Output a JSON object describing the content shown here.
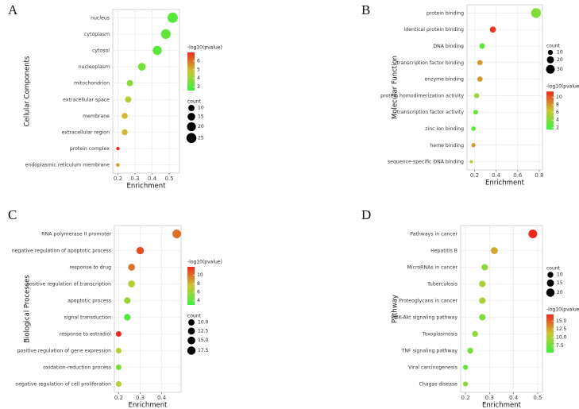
{
  "chart_data": [
    {
      "panel_label": "A",
      "type": "bubble",
      "xlabel": "Enrichment",
      "ylabel": "Cellular Components",
      "categories": [
        "nucleus",
        "cytoplasm",
        "cytosol",
        "nucleoplasm",
        "mitochondrion",
        "extracellular space",
        "membrane",
        "extracellular region",
        "protein complex",
        "endoplasmic reticulum membrane"
      ],
      "values": [
        0.52,
        0.48,
        0.43,
        0.34,
        0.27,
        0.26,
        0.24,
        0.24,
        0.2,
        0.2
      ],
      "count": [
        27,
        24,
        21,
        15,
        10,
        10,
        9,
        9,
        3,
        3
      ],
      "neglog10p": [
        3,
        3.2,
        3,
        3.5,
        3.8,
        4.5,
        5,
        5,
        7,
        5.5
      ],
      "xlim": [
        0.17,
        0.56
      ],
      "xticks": [
        0.2,
        0.3,
        0.4,
        0.5
      ],
      "grid": true,
      "color_legend": {
        "title": "-log10(pvalue)",
        "lim": [
          2.6,
          7
        ],
        "ticks": [
          3,
          4,
          5,
          6
        ],
        "colors": [
          "#3cf03c",
          "#c8c832",
          "#ee2a1e"
        ]
      },
      "size_legend": {
        "title": "count",
        "ticks": [
          10,
          15,
          20,
          25
        ]
      }
    },
    {
      "panel_label": "B",
      "type": "bubble",
      "xlabel": "Enrichment",
      "ylabel": "Molecular Function",
      "categories": [
        "protein binding",
        "identical protein binding",
        "DNA binding",
        "transcription factor binding",
        "enzyme binding",
        "protein homodimerization activity",
        "transcription factor activity",
        "zinc ion binding",
        "heme binding",
        "sequence-specific DNA binding"
      ],
      "values": [
        0.77,
        0.37,
        0.27,
        0.25,
        0.25,
        0.22,
        0.21,
        0.19,
        0.19,
        0.17
      ],
      "count": [
        38,
        15,
        12,
        11,
        11,
        10,
        9,
        8,
        7,
        4
      ],
      "neglog10p": [
        4,
        11,
        2.5,
        8,
        8,
        5,
        3,
        2.5,
        8,
        6
      ],
      "xlim": [
        0.13,
        0.83
      ],
      "xticks": [
        0.2,
        0.4,
        0.6,
        0.8
      ],
      "grid": true,
      "color_legend": {
        "title": "-log10(pvalue)",
        "lim": [
          1.5,
          11.5
        ],
        "ticks": [
          2,
          4,
          6,
          8,
          10
        ],
        "colors": [
          "#3cf03c",
          "#c8c832",
          "#ee2a1e"
        ]
      },
      "size_legend": {
        "title": "count",
        "ticks": [
          10,
          20,
          30
        ]
      }
    },
    {
      "panel_label": "C",
      "type": "bubble",
      "xlabel": "Enrichment",
      "ylabel": "Biological Processes",
      "categories": [
        "RNA polymerase II promoter",
        "negative regulation of apoptotic process",
        "response to drug",
        "positive regulation of transcription",
        "apoptotic process",
        "signal transduction",
        "response to estradiol",
        "positive regulation of gene expression",
        "oxidation-reduction process",
        "negative regulation of cell proliferation"
      ],
      "values": [
        0.47,
        0.3,
        0.26,
        0.26,
        0.24,
        0.24,
        0.2,
        0.2,
        0.2,
        0.2
      ],
      "count": [
        19,
        14,
        12,
        12,
        11,
        11,
        8,
        8,
        8,
        8
      ],
      "neglog10p": [
        10,
        11,
        10,
        7,
        6,
        3.5,
        12,
        7,
        5,
        7
      ],
      "xlim": [
        0.18,
        0.49
      ],
      "xticks": [
        0.2,
        0.3,
        0.4
      ],
      "grid": true,
      "color_legend": {
        "title": "-log10(pvalue)",
        "lim": [
          3,
          12
        ],
        "ticks": [
          4,
          6,
          8,
          10
        ],
        "colors": [
          "#3cf03c",
          "#c8c832",
          "#ee2a1e"
        ]
      },
      "size_legend": {
        "title": "count",
        "ticks": [
          {
            "value": 10,
            "label": "10.0"
          },
          12.5,
          {
            "value": 15,
            "label": "15.0"
          },
          17.5
        ]
      }
    },
    {
      "panel_label": "D",
      "type": "bubble",
      "xlabel": "Enrichment",
      "ylabel": "Pathway",
      "categories": [
        "Pathways in cancer",
        "Hepatitis B",
        "MicroRNAs in cancer",
        "Tuberculosis",
        "Proteoglycans in cancer",
        "PI3K-Akt signaling pathway",
        "Toxoplasmosis",
        "TNF signaling pathway",
        "Viral carcinogenesis",
        "Chagas disease"
      ],
      "values": [
        0.48,
        0.32,
        0.28,
        0.27,
        0.27,
        0.27,
        0.24,
        0.22,
        0.2,
        0.2
      ],
      "count": [
        22,
        14,
        12,
        12,
        12,
        12,
        10,
        10,
        7,
        7
      ],
      "neglog10p": [
        17,
        12.5,
        9,
        10,
        10,
        8,
        9,
        8,
        7,
        9
      ],
      "xlim": [
        0.18,
        0.52
      ],
      "xticks": [
        0.2,
        0.3,
        0.4,
        0.5
      ],
      "grid": true,
      "color_legend": {
        "title": "-log10(pvalue)",
        "lim": [
          5.5,
          17
        ],
        "ticks": [
          7.5,
          {
            "value": 10,
            "label": "10.0"
          },
          12.5,
          {
            "value": 15,
            "label": "15.0"
          }
        ],
        "colors": [
          "#3cf03c",
          "#c8c832",
          "#ee2a1e"
        ]
      },
      "size_legend": {
        "title": "count",
        "ticks": [
          10,
          15,
          20
        ]
      }
    }
  ]
}
